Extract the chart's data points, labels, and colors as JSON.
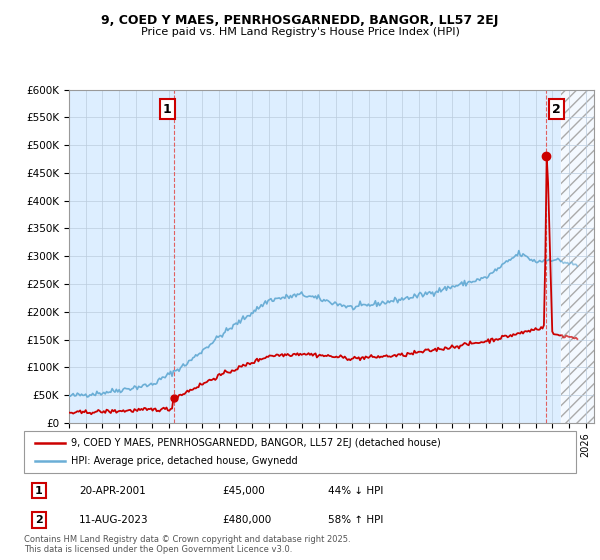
{
  "title_line1": "9, COED Y MAES, PENRHOSGARNEDD, BANGOR, LL57 2EJ",
  "title_line2": "Price paid vs. HM Land Registry's House Price Index (HPI)",
  "ylabel_ticks": [
    "£0",
    "£50K",
    "£100K",
    "£150K",
    "£200K",
    "£250K",
    "£300K",
    "£350K",
    "£400K",
    "£450K",
    "£500K",
    "£550K",
    "£600K"
  ],
  "ytick_values": [
    0,
    50000,
    100000,
    150000,
    200000,
    250000,
    300000,
    350000,
    400000,
    450000,
    500000,
    550000,
    600000
  ],
  "xlim_start": 1995.0,
  "xlim_end": 2026.5,
  "ylim_min": 0,
  "ylim_max": 600000,
  "hpi_color": "#6baed6",
  "price_color": "#cc0000",
  "dashed_color": "#e06060",
  "marker1_year": 2001.3,
  "marker1_price": 45000,
  "marker2_year": 2023.62,
  "marker2_price": 480000,
  "legend_label1": "9, COED Y MAES, PENRHOSGARNEDD, BANGOR, LL57 2EJ (detached house)",
  "legend_label2": "HPI: Average price, detached house, Gwynedd",
  "annotation1_label": "1",
  "annotation2_label": "2",
  "note1_date": "20-APR-2001",
  "note1_price": "£45,000",
  "note1_hpi": "44% ↓ HPI",
  "note2_date": "11-AUG-2023",
  "note2_price": "£480,000",
  "note2_hpi": "58% ↑ HPI",
  "footer": "Contains HM Land Registry data © Crown copyright and database right 2025.\nThis data is licensed under the Open Government Licence v3.0.",
  "background_color": "#ffffff",
  "chart_bg_color": "#ddeeff",
  "grid_color": "#bbccdd"
}
